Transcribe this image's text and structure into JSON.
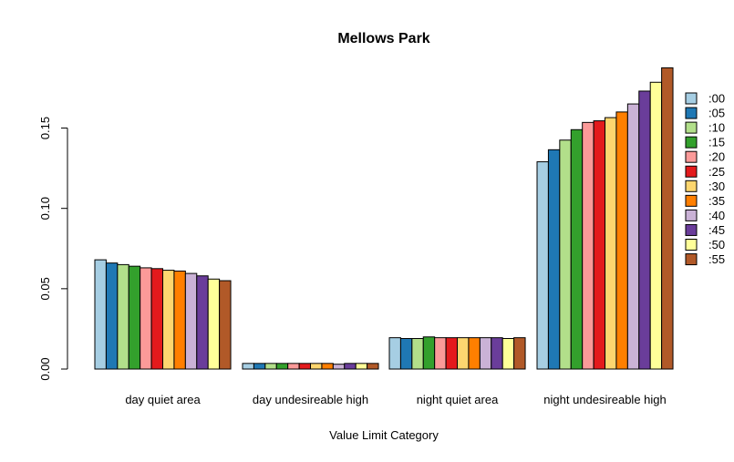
{
  "chart_data": {
    "type": "bar",
    "title": "Mellows Park",
    "xlabel": "Value Limit Category",
    "ylabel": "",
    "ylim": [
      0,
      0.19
    ],
    "yticks": [
      0.0,
      0.05,
      0.1,
      0.15
    ],
    "ytick_labels": [
      "0.00",
      "0.05",
      "0.10",
      "0.15"
    ],
    "legend_position": "right",
    "categories": [
      "day quiet area",
      "day undesireable high",
      "night quiet area",
      "night undesireable high"
    ],
    "series": [
      {
        "name": ":00",
        "color": "#A6CEE3",
        "values": [
          0.068,
          0.0035,
          0.0195,
          0.129
        ]
      },
      {
        "name": ":05",
        "color": "#1F78B4",
        "values": [
          0.066,
          0.0035,
          0.019,
          0.1365
        ]
      },
      {
        "name": ":10",
        "color": "#B2DF8A",
        "values": [
          0.065,
          0.0035,
          0.019,
          0.1425
        ]
      },
      {
        "name": ":15",
        "color": "#33A02C",
        "values": [
          0.064,
          0.0035,
          0.02,
          0.149
        ]
      },
      {
        "name": ":20",
        "color": "#FB9A99",
        "values": [
          0.063,
          0.0035,
          0.0195,
          0.1535
        ]
      },
      {
        "name": ":25",
        "color": "#E31A1C",
        "values": [
          0.0625,
          0.0035,
          0.0195,
          0.1545
        ]
      },
      {
        "name": ":30",
        "color": "#FDD66F",
        "values": [
          0.0615,
          0.0035,
          0.0195,
          0.1565
        ]
      },
      {
        "name": ":35",
        "color": "#FF7F00",
        "values": [
          0.061,
          0.0035,
          0.0195,
          0.16
        ]
      },
      {
        "name": ":40",
        "color": "#CAB2D6",
        "values": [
          0.0595,
          0.003,
          0.0195,
          0.165
        ]
      },
      {
        "name": ":45",
        "color": "#6A3D9A",
        "values": [
          0.058,
          0.0035,
          0.0195,
          0.173
        ]
      },
      {
        "name": ":50",
        "color": "#FFFF99",
        "values": [
          0.056,
          0.0035,
          0.019,
          0.1785
        ]
      },
      {
        "name": ":55",
        "color": "#B15928",
        "values": [
          0.055,
          0.0035,
          0.0195,
          0.1875
        ]
      }
    ]
  }
}
